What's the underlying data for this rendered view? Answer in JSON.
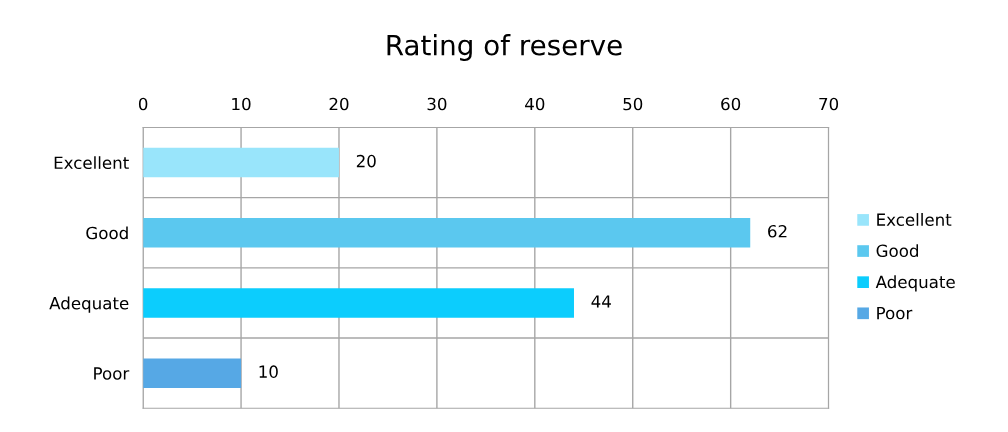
{
  "chart_data": {
    "type": "bar",
    "title": "Rating of reserve",
    "orientation": "horizontal",
    "categories": [
      "Excellent",
      "Good",
      "Adequate",
      "Poor"
    ],
    "series": [
      {
        "name": "Excellent",
        "color": "#99e5fb",
        "values": [
          20,
          null,
          null,
          null
        ]
      },
      {
        "name": "Good",
        "color": "#5bc8ef",
        "values": [
          null,
          62,
          null,
          null
        ]
      },
      {
        "name": "Adequate",
        "color": "#0ccdfd",
        "values": [
          null,
          null,
          44,
          null
        ]
      },
      {
        "name": "Poor",
        "color": "#56a8e5",
        "values": [
          null,
          null,
          null,
          10
        ]
      }
    ],
    "xlim": [
      0,
      70
    ],
    "xticks": [
      0,
      10,
      20,
      30,
      40,
      50,
      60,
      70
    ],
    "data_labels": true,
    "grid": true,
    "legend": "right"
  }
}
